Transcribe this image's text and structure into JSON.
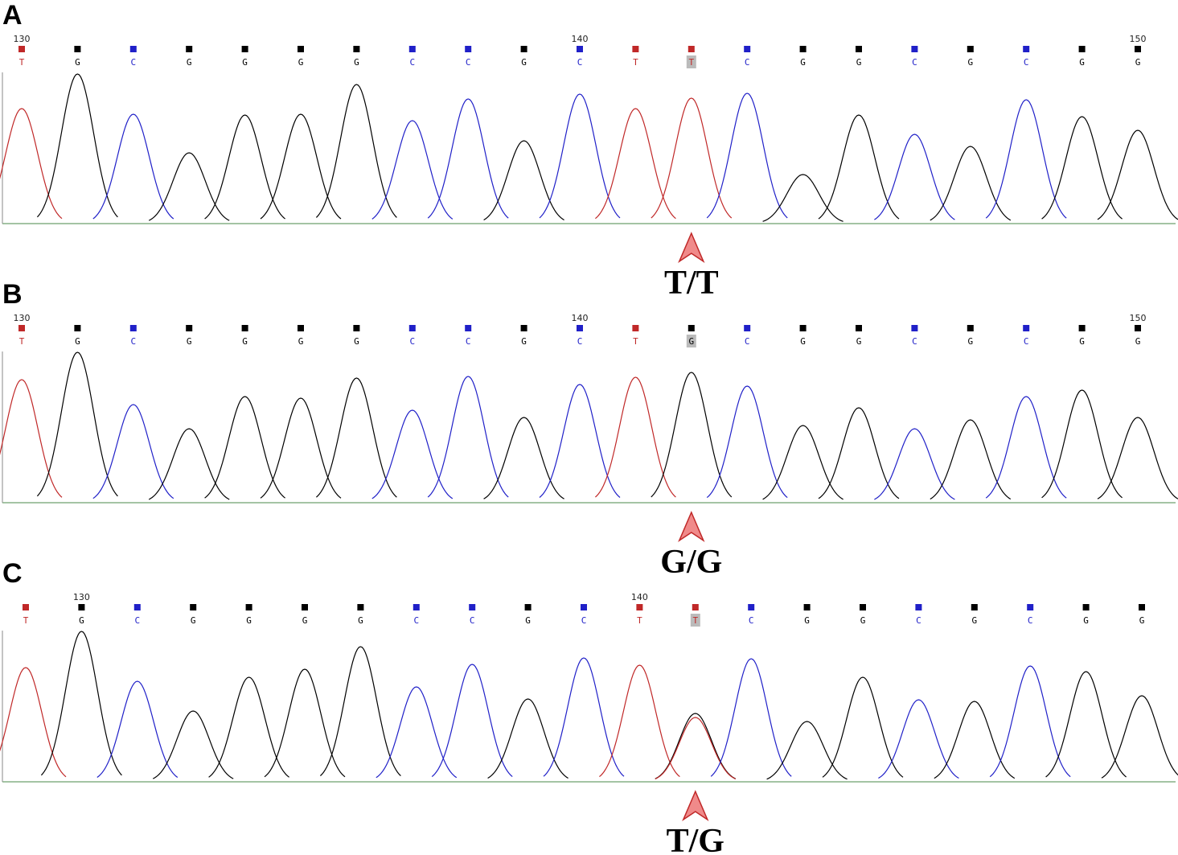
{
  "panels": [
    {
      "label": "A",
      "genotype": "T/T",
      "bases": [
        {
          "call": "T",
          "tick": "130",
          "color": "#c02828",
          "peaks": [
            {
              "color": "#c02828",
              "height": 143
            }
          ]
        },
        {
          "call": "G",
          "color": "#000000",
          "peaks": [
            {
              "color": "#000000",
              "height": 186
            }
          ]
        },
        {
          "call": "C",
          "color": "#2020c8",
          "peaks": [
            {
              "color": "#2020c8",
              "height": 136
            }
          ]
        },
        {
          "call": "G",
          "color": "#000000",
          "peaks": [
            {
              "color": "#000000",
              "height": 88
            }
          ]
        },
        {
          "call": "G",
          "color": "#000000",
          "peaks": [
            {
              "color": "#000000",
              "height": 135
            }
          ]
        },
        {
          "call": "G",
          "color": "#000000",
          "peaks": [
            {
              "color": "#000000",
              "height": 136
            }
          ]
        },
        {
          "call": "G",
          "color": "#000000",
          "peaks": [
            {
              "color": "#000000",
              "height": 173
            }
          ]
        },
        {
          "call": "C",
          "color": "#2020c8",
          "peaks": [
            {
              "color": "#2020c8",
              "height": 128
            }
          ]
        },
        {
          "call": "C",
          "color": "#2020c8",
          "peaks": [
            {
              "color": "#2020c8",
              "height": 155
            }
          ]
        },
        {
          "call": "G",
          "color": "#000000",
          "peaks": [
            {
              "color": "#000000",
              "height": 103
            }
          ]
        },
        {
          "call": "C",
          "tick": "140",
          "color": "#2020c8",
          "peaks": [
            {
              "color": "#2020c8",
              "height": 161
            }
          ]
        },
        {
          "call": "T",
          "color": "#c02828",
          "peaks": [
            {
              "color": "#c02828",
              "height": 143
            }
          ]
        },
        {
          "call": "T",
          "color": "#c02828",
          "highlight": true,
          "peaks": [
            {
              "color": "#c02828",
              "height": 156
            }
          ]
        },
        {
          "call": "C",
          "color": "#2020c8",
          "peaks": [
            {
              "color": "#2020c8",
              "height": 162
            }
          ]
        },
        {
          "call": "G",
          "color": "#000000",
          "peaks": [
            {
              "color": "#000000",
              "height": 61
            }
          ]
        },
        {
          "call": "G",
          "color": "#000000",
          "peaks": [
            {
              "color": "#000000",
              "height": 135
            }
          ]
        },
        {
          "call": "C",
          "color": "#2020c8",
          "peaks": [
            {
              "color": "#2020c8",
              "height": 111
            }
          ]
        },
        {
          "call": "G",
          "color": "#000000",
          "peaks": [
            {
              "color": "#000000",
              "height": 96
            }
          ]
        },
        {
          "call": "C",
          "color": "#2020c8",
          "peaks": [
            {
              "color": "#2020c8",
              "height": 154
            }
          ]
        },
        {
          "call": "G",
          "color": "#000000",
          "peaks": [
            {
              "color": "#000000",
              "height": 133
            }
          ]
        },
        {
          "call": "G",
          "tick": "150",
          "color": "#000000",
          "peaks": [
            {
              "color": "#000000",
              "height": 116
            }
          ]
        }
      ]
    },
    {
      "label": "B",
      "genotype": "G/G",
      "bases": [
        {
          "call": "T",
          "tick": "130",
          "color": "#c02828",
          "peaks": [
            {
              "color": "#c02828",
              "height": 153
            }
          ]
        },
        {
          "call": "G",
          "color": "#000000",
          "peaks": [
            {
              "color": "#000000",
              "height": 187
            }
          ]
        },
        {
          "call": "C",
          "color": "#2020c8",
          "peaks": [
            {
              "color": "#2020c8",
              "height": 122
            }
          ]
        },
        {
          "call": "G",
          "color": "#000000",
          "peaks": [
            {
              "color": "#000000",
              "height": 92
            }
          ]
        },
        {
          "call": "G",
          "color": "#000000",
          "peaks": [
            {
              "color": "#000000",
              "height": 132
            }
          ]
        },
        {
          "call": "G",
          "color": "#000000",
          "peaks": [
            {
              "color": "#000000",
              "height": 130
            }
          ]
        },
        {
          "call": "G",
          "color": "#000000",
          "peaks": [
            {
              "color": "#000000",
              "height": 155
            }
          ]
        },
        {
          "call": "C",
          "color": "#2020c8",
          "peaks": [
            {
              "color": "#2020c8",
              "height": 115
            }
          ]
        },
        {
          "call": "C",
          "color": "#2020c8",
          "peaks": [
            {
              "color": "#2020c8",
              "height": 157
            }
          ]
        },
        {
          "call": "G",
          "color": "#000000",
          "peaks": [
            {
              "color": "#000000",
              "height": 106
            }
          ]
        },
        {
          "call": "C",
          "tick": "140",
          "color": "#2020c8",
          "peaks": [
            {
              "color": "#2020c8",
              "height": 147
            }
          ]
        },
        {
          "call": "T",
          "color": "#c02828",
          "peaks": [
            {
              "color": "#c02828",
              "height": 156
            }
          ]
        },
        {
          "call": "G",
          "color": "#000000",
          "highlight": true,
          "peaks": [
            {
              "color": "#000000",
              "height": 162
            }
          ]
        },
        {
          "call": "C",
          "color": "#2020c8",
          "peaks": [
            {
              "color": "#2020c8",
              "height": 145
            }
          ]
        },
        {
          "call": "G",
          "color": "#000000",
          "peaks": [
            {
              "color": "#000000",
              "height": 96
            }
          ]
        },
        {
          "call": "G",
          "color": "#000000",
          "peaks": [
            {
              "color": "#000000",
              "height": 118
            }
          ]
        },
        {
          "call": "C",
          "color": "#2020c8",
          "peaks": [
            {
              "color": "#2020c8",
              "height": 92
            }
          ]
        },
        {
          "call": "G",
          "color": "#000000",
          "peaks": [
            {
              "color": "#000000",
              "height": 103
            }
          ]
        },
        {
          "call": "C",
          "color": "#2020c8",
          "peaks": [
            {
              "color": "#2020c8",
              "height": 132
            }
          ]
        },
        {
          "call": "G",
          "color": "#000000",
          "peaks": [
            {
              "color": "#000000",
              "height": 140
            }
          ]
        },
        {
          "call": "G",
          "tick": "150",
          "color": "#000000",
          "peaks": [
            {
              "color": "#000000",
              "height": 106
            }
          ]
        }
      ]
    },
    {
      "label": "C",
      "genotype": "T/G",
      "bases": [
        {
          "call": "T",
          "color": "#c02828",
          "peaks": [
            {
              "color": "#c02828",
              "height": 142
            }
          ]
        },
        {
          "call": "G",
          "tick": "130",
          "color": "#000000",
          "peaks": [
            {
              "color": "#000000",
              "height": 187
            }
          ]
        },
        {
          "call": "C",
          "color": "#2020c8",
          "peaks": [
            {
              "color": "#2020c8",
              "height": 125
            }
          ]
        },
        {
          "call": "G",
          "color": "#000000",
          "peaks": [
            {
              "color": "#000000",
              "height": 88
            }
          ]
        },
        {
          "call": "G",
          "color": "#000000",
          "peaks": [
            {
              "color": "#000000",
              "height": 130
            }
          ]
        },
        {
          "call": "G",
          "color": "#000000",
          "peaks": [
            {
              "color": "#000000",
              "height": 140
            }
          ]
        },
        {
          "call": "G",
          "color": "#000000",
          "peaks": [
            {
              "color": "#000000",
              "height": 168
            }
          ]
        },
        {
          "call": "C",
          "color": "#2020c8",
          "peaks": [
            {
              "color": "#2020c8",
              "height": 118
            }
          ]
        },
        {
          "call": "C",
          "color": "#2020c8",
          "peaks": [
            {
              "color": "#2020c8",
              "height": 146
            }
          ]
        },
        {
          "call": "G",
          "color": "#000000",
          "peaks": [
            {
              "color": "#000000",
              "height": 103
            }
          ]
        },
        {
          "call": "C",
          "color": "#2020c8",
          "peaks": [
            {
              "color": "#2020c8",
              "height": 154
            }
          ]
        },
        {
          "call": "T",
          "tick": "140",
          "color": "#c02828",
          "peaks": [
            {
              "color": "#c02828",
              "height": 145
            }
          ]
        },
        {
          "call": "T",
          "color": "#c02828",
          "highlight": true,
          "peaks": [
            {
              "color": "#000000",
              "height": 85
            },
            {
              "color": "#c02828",
              "height": 80
            }
          ]
        },
        {
          "call": "C",
          "color": "#2020c8",
          "peaks": [
            {
              "color": "#2020c8",
              "height": 153
            }
          ]
        },
        {
          "call": "G",
          "color": "#000000",
          "peaks": [
            {
              "color": "#000000",
              "height": 75
            }
          ]
        },
        {
          "call": "G",
          "color": "#000000",
          "peaks": [
            {
              "color": "#000000",
              "height": 130
            }
          ]
        },
        {
          "call": "C",
          "color": "#2020c8",
          "peaks": [
            {
              "color": "#2020c8",
              "height": 102
            }
          ]
        },
        {
          "call": "G",
          "color": "#000000",
          "peaks": [
            {
              "color": "#000000",
              "height": 100
            }
          ]
        },
        {
          "call": "C",
          "color": "#2020c8",
          "peaks": [
            {
              "color": "#2020c8",
              "height": 144
            }
          ]
        },
        {
          "call": "G",
          "color": "#000000",
          "peaks": [
            {
              "color": "#000000",
              "height": 137
            }
          ]
        },
        {
          "call": "G",
          "color": "#000000",
          "peaks": [
            {
              "color": "#000000",
              "height": 107
            }
          ]
        }
      ]
    }
  ]
}
